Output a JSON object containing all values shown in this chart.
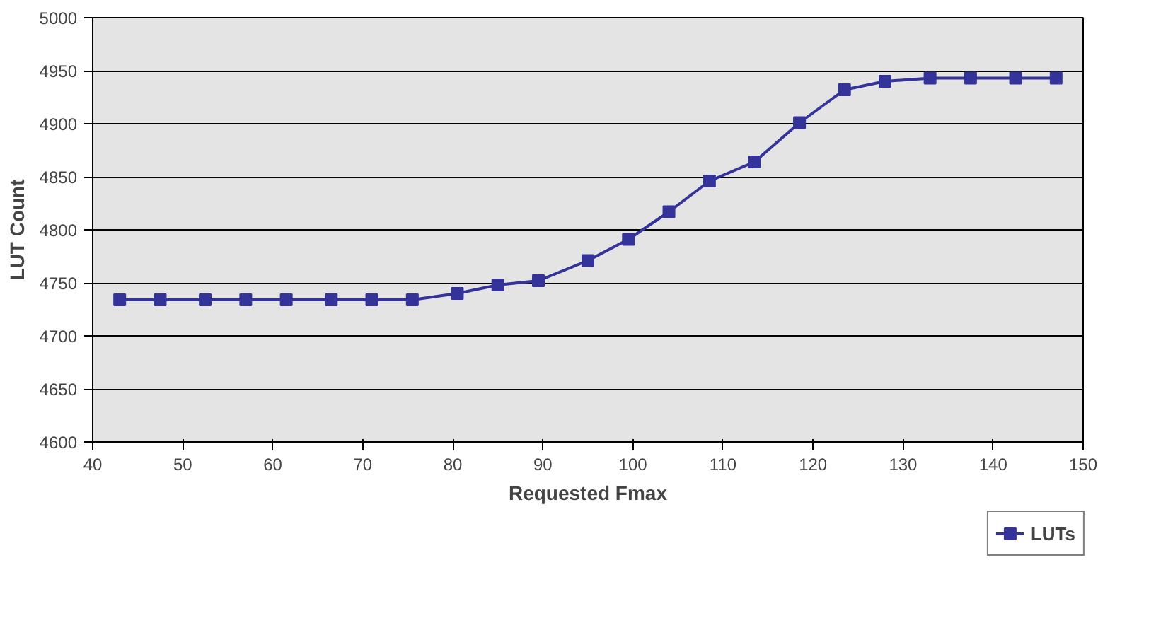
{
  "chart_data": {
    "type": "line",
    "xlabel": "Requested Fmax",
    "ylabel": "LUT Count",
    "x": [
      43,
      47.5,
      52.5,
      57,
      61.5,
      66.5,
      71,
      75.5,
      80.5,
      85,
      89.5,
      95,
      99.5,
      104,
      108.5,
      113.5,
      118.5,
      123.5,
      128,
      133,
      137.5,
      142.5,
      147
    ],
    "series": [
      {
        "name": "LUTs",
        "color": "#333399",
        "values": [
          4734,
          4734,
          4734,
          4734,
          4734,
          4734,
          4734,
          4734,
          4740,
          4748,
          4752,
          4771,
          4791,
          4817,
          4846,
          4864,
          4901,
          4932,
          4940,
          4943,
          4943,
          4943,
          4943
        ]
      }
    ],
    "xlim": [
      40,
      150
    ],
    "xticks": [
      40,
      50,
      60,
      70,
      80,
      90,
      100,
      110,
      120,
      130,
      140,
      150
    ],
    "ylim": [
      4600,
      5000
    ],
    "yticks": [
      4600,
      4650,
      4700,
      4750,
      4800,
      4850,
      4900,
      4950,
      5000
    ],
    "grid": "y",
    "legend": "bottom right",
    "marker": "square",
    "line_style": "solid"
  }
}
